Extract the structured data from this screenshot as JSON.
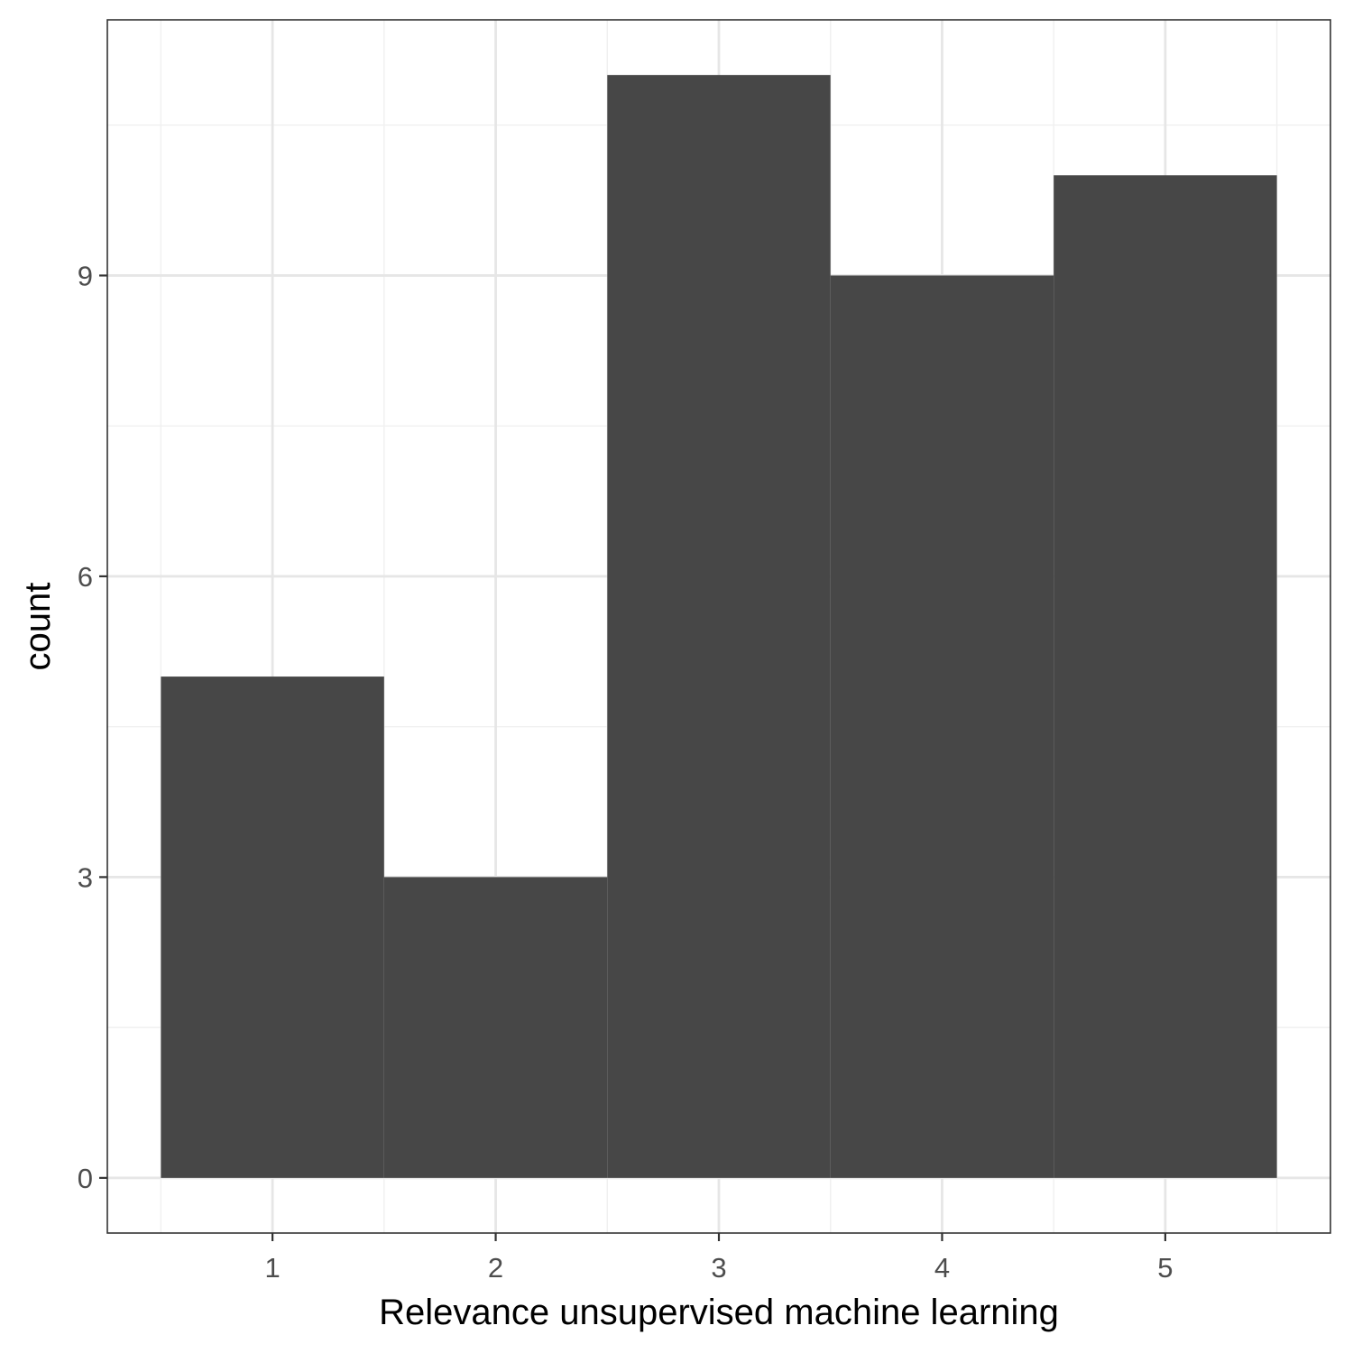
{
  "chart_data": {
    "type": "bar",
    "categories": [
      "1",
      "2",
      "3",
      "4",
      "5"
    ],
    "x": [
      1,
      2,
      3,
      4,
      5
    ],
    "values": [
      5,
      3,
      11,
      9,
      10
    ],
    "title": "",
    "xlabel": "Relevance unsupervised machine learning",
    "ylabel": "count",
    "xlim": [
      0.26,
      5.74
    ],
    "ylim": [
      -0.55,
      11.55
    ],
    "y_ticks": [
      0,
      3,
      6,
      9
    ],
    "y_tick_labels": [
      "0",
      "3",
      "6",
      "9"
    ],
    "x_ticks": [
      1,
      2,
      3,
      4,
      5
    ],
    "x_tick_labels": [
      "1",
      "2",
      "3",
      "4",
      "5"
    ],
    "bin_width": 1,
    "grid": true,
    "legend": "none",
    "colors": {
      "bar": "#474747",
      "panel_border": "#333333",
      "grid_major": "#e6e6e6",
      "grid_minor": "#f0f0f0",
      "tick_text": "#4d4d4d",
      "axis_title": "#000000"
    }
  }
}
